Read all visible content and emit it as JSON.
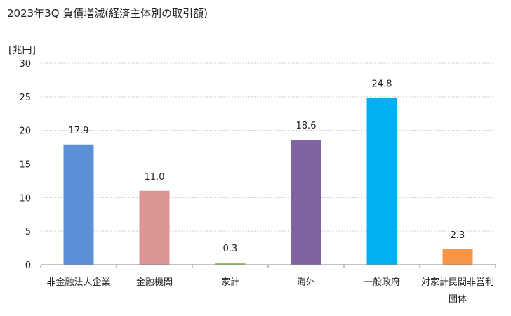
{
  "chart_data": {
    "type": "bar",
    "title": "2023年3Q 負債増減(経済主体別の取引額)",
    "ylabel": "[兆円]",
    "xlabel": "",
    "ylim": [
      0,
      30
    ],
    "yticks": [
      0,
      5,
      10,
      15,
      20,
      25,
      30
    ],
    "grid": true,
    "legend": "none",
    "categories": [
      [
        "非金融法人企業"
      ],
      [
        "金融機関"
      ],
      [
        "家計"
      ],
      [
        "海外"
      ],
      [
        "一般政府"
      ],
      [
        "対家計民間非営利",
        "団体"
      ]
    ],
    "values": [
      17.9,
      11.0,
      0.3,
      18.6,
      24.8,
      2.3
    ],
    "data_labels": [
      "17.9",
      "11.0",
      "0.3",
      "18.6",
      "24.8",
      "2.3"
    ],
    "colors": [
      "#5b8fd6",
      "#d99694",
      "#92c955",
      "#8064a2",
      "#00b0f0",
      "#f79646"
    ]
  }
}
